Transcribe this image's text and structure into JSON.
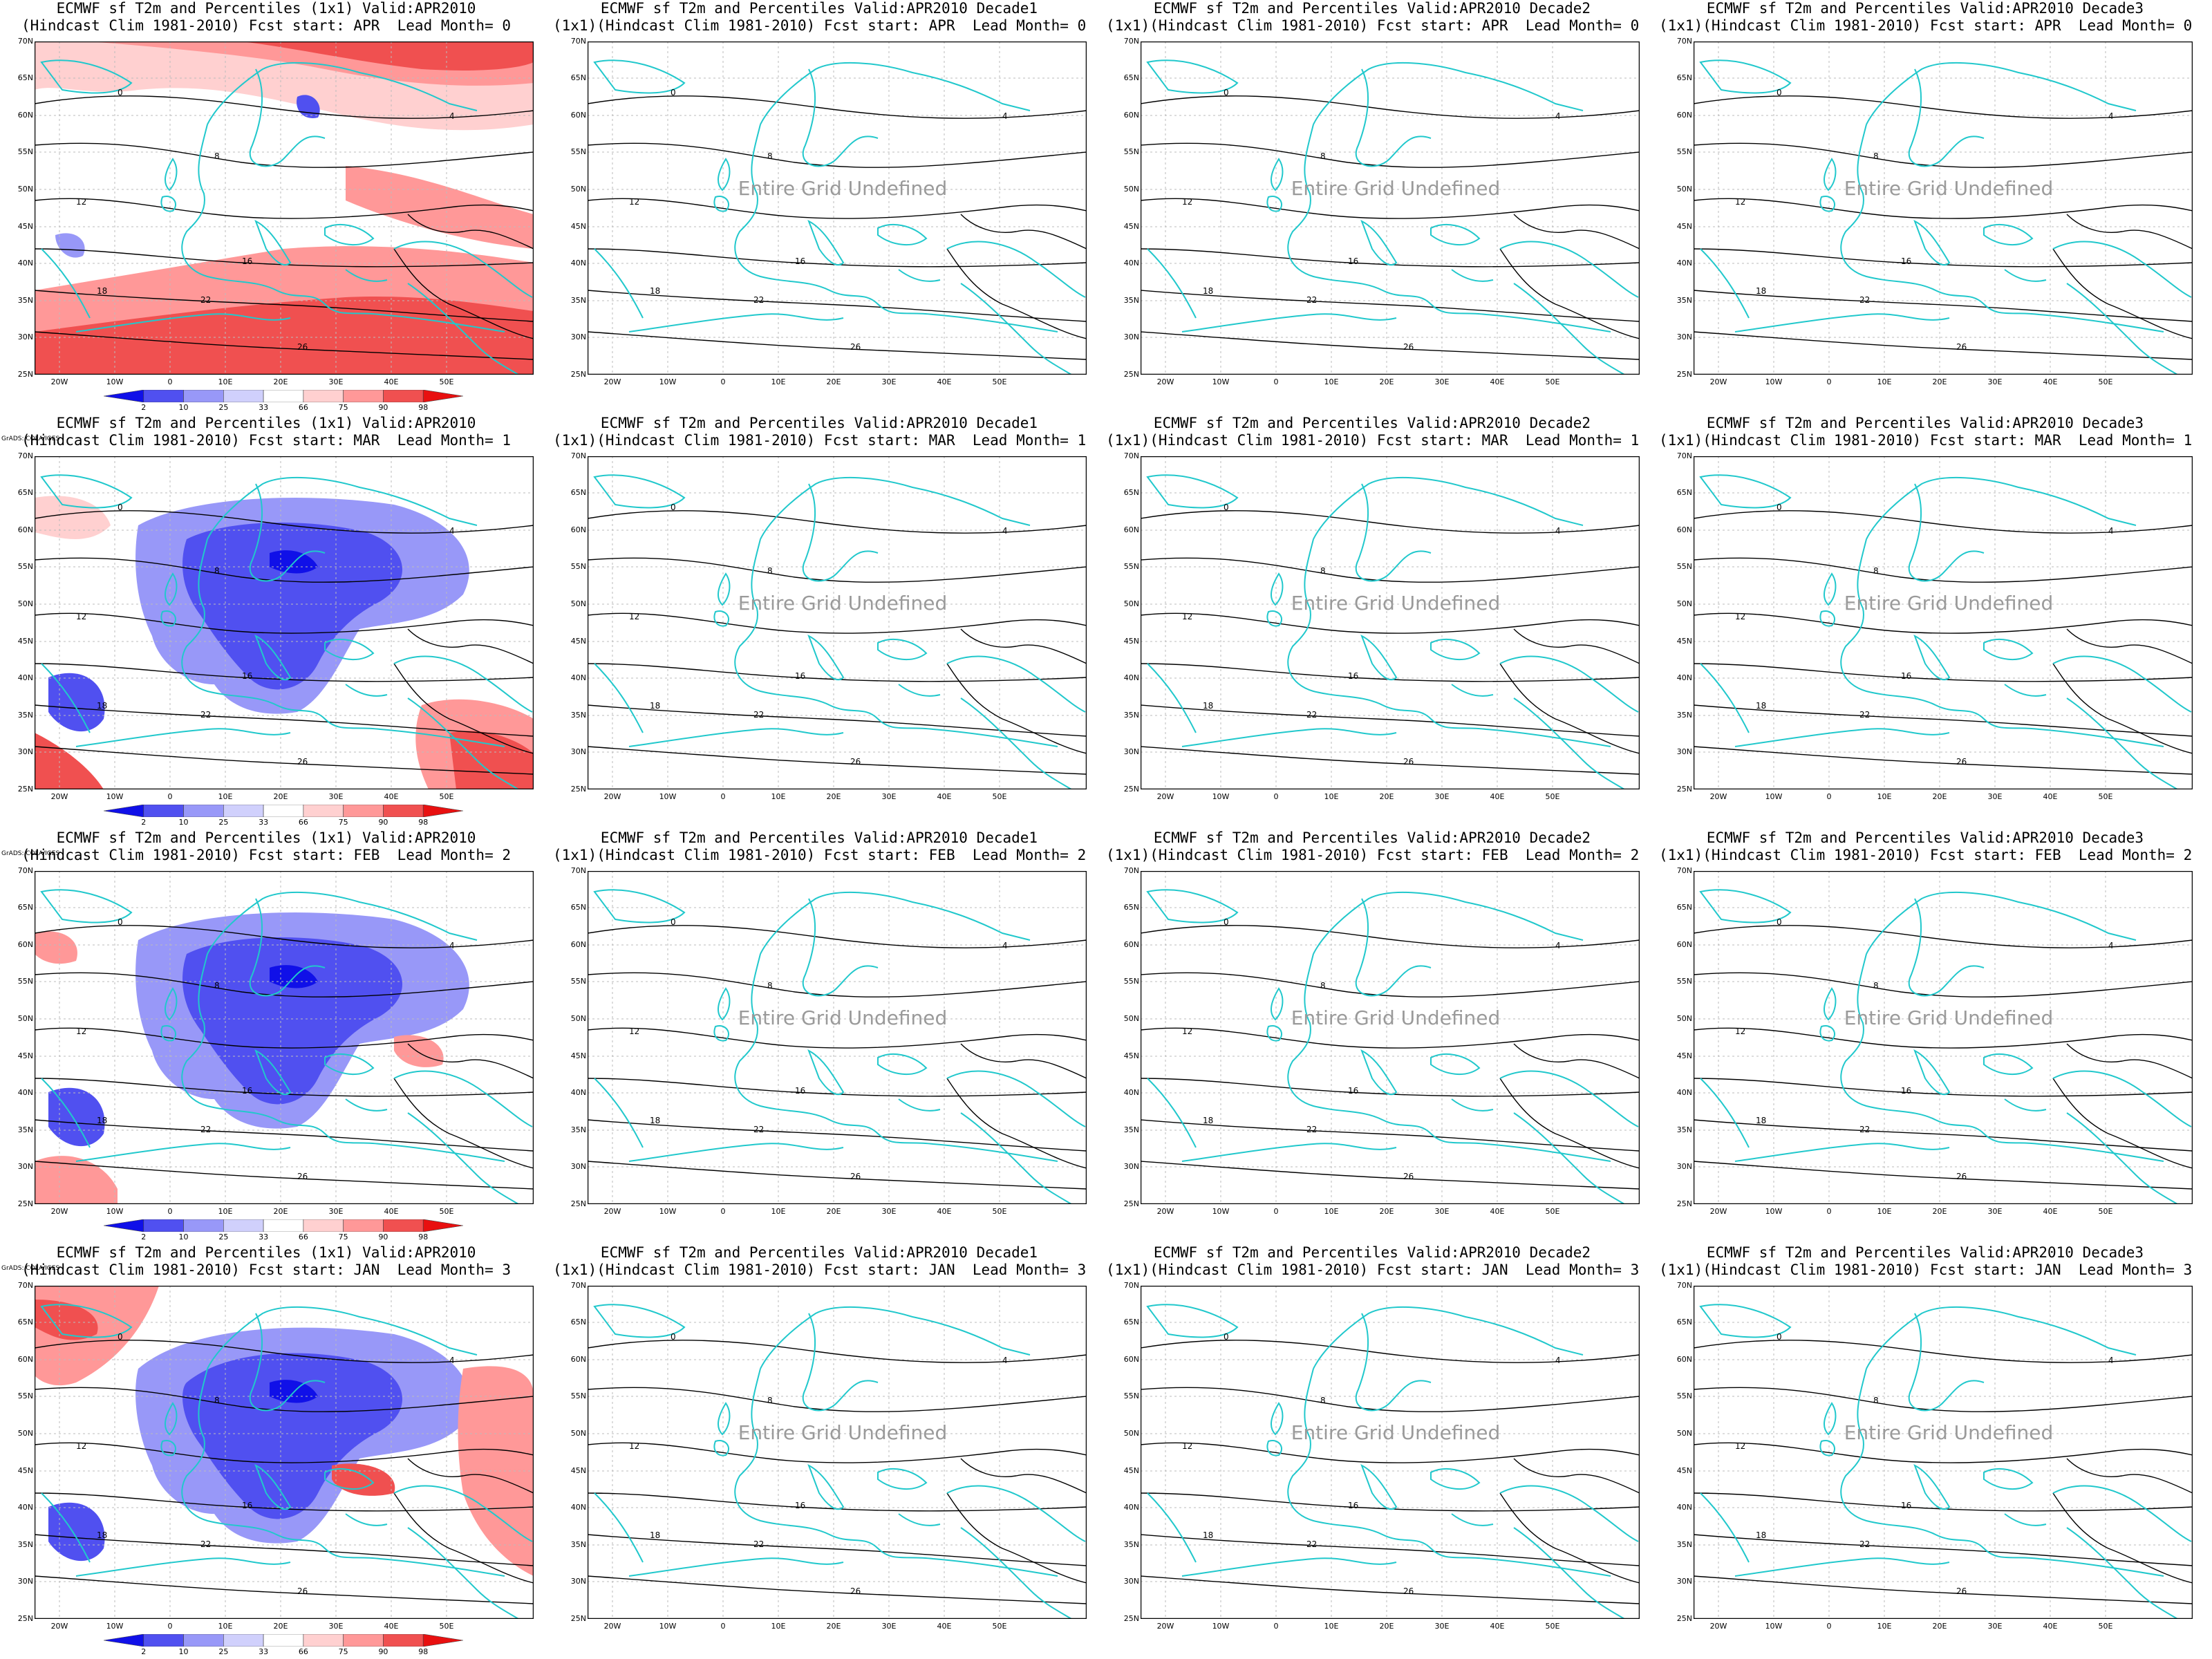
{
  "colors": {
    "coast": "#21c8cc",
    "contour": "#000000",
    "grid": "#bbbbbb",
    "scale": [
      "#1010e8",
      "#5050f0",
      "#9898f8",
      "#d0d0fc",
      "#ffffff",
      "#ffd0d0",
      "#ff9898",
      "#f05050",
      "#e81010"
    ]
  },
  "lat_labels": [
    "70N",
    "65N",
    "60N",
    "55N",
    "50N",
    "45N",
    "40N",
    "35N",
    "30N",
    "25N"
  ],
  "lon_labels": [
    "20W",
    "10W",
    "0",
    "10E",
    "20E",
    "30E",
    "40E",
    "50E"
  ],
  "colorbar_labels": [
    "2",
    "10",
    "25",
    "33",
    "66",
    "75",
    "90",
    "98"
  ],
  "credit": "GrADS: COLA/IGES",
  "undefined_text": "Entire Grid Undefined",
  "rows": [
    {
      "line2_prefix_monthly": "(Hindcast Clim 1981-2010) Fcst start: APR  Lead Month= 0",
      "line2_decade": "(1x1)(Hindcast Clim 1981-2010) Fcst start: APR  Lead Month= 0",
      "anomaly": "warm"
    },
    {
      "line2_prefix_monthly": "(Hindcast Clim 1981-2010) Fcst start: MAR  Lead Month= 1",
      "line2_decade": "(1x1)(Hindcast Clim 1981-2010) Fcst start: MAR  Lead Month= 1",
      "anomaly": "cold"
    },
    {
      "line2_prefix_monthly": "(Hindcast Clim 1981-2010) Fcst start: FEB  Lead Month= 2",
      "line2_decade": "(1x1)(Hindcast Clim 1981-2010) Fcst start: FEB  Lead Month= 2",
      "anomaly": "cold"
    },
    {
      "line2_prefix_monthly": "(Hindcast Clim 1981-2010) Fcst start: JAN  Lead Month= 3",
      "line2_decade": "(1x1)(Hindcast Clim 1981-2010) Fcst start: JAN  Lead Month= 3",
      "anomaly": "cold"
    }
  ],
  "columns": [
    {
      "line1": "ECMWF sf T2m and Percentiles (1x1) Valid:APR2010",
      "kind": "monthly"
    },
    {
      "line1": "ECMWF sf T2m and Percentiles Valid:APR2010 Decade1",
      "kind": "decade"
    },
    {
      "line1": "ECMWF sf T2m and Percentiles Valid:APR2010 Decade2",
      "kind": "decade"
    },
    {
      "line1": "ECMWF sf T2m and Percentiles Valid:APR2010 Decade3",
      "kind": "decade"
    }
  ],
  "contour_labels": [
    "0",
    "4",
    "8",
    "12",
    "16",
    "18",
    "22",
    "26"
  ]
}
